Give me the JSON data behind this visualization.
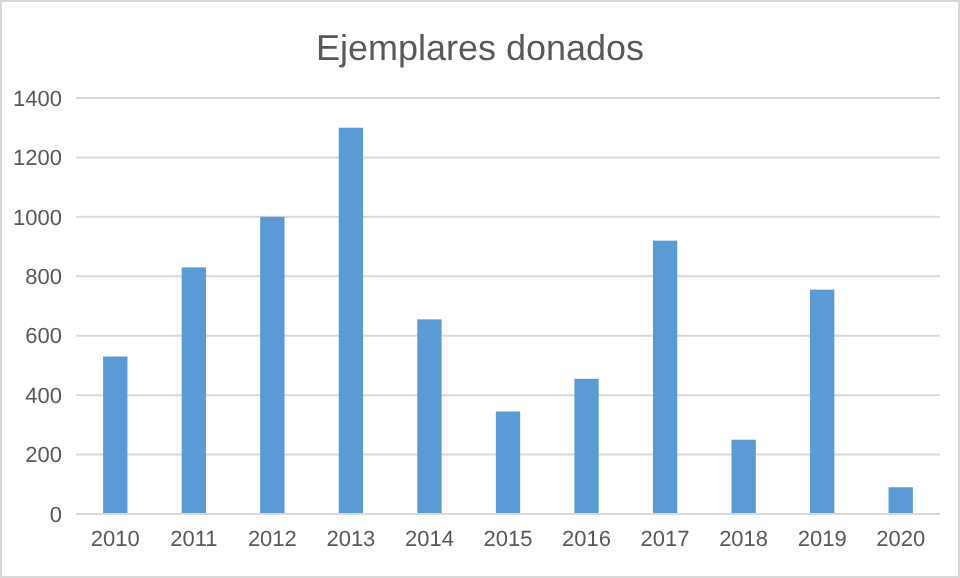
{
  "chart_data": {
    "type": "bar",
    "title": "Ejemplares donados",
    "categories": [
      "2010",
      "2011",
      "2012",
      "2013",
      "2014",
      "2015",
      "2016",
      "2017",
      "2018",
      "2019",
      "2020"
    ],
    "values": [
      530,
      830,
      1000,
      1300,
      655,
      345,
      455,
      920,
      250,
      755,
      90
    ],
    "color": "#5b9bd5",
    "ylim": [
      0,
      1400
    ],
    "yticks": [
      0,
      200,
      400,
      600,
      800,
      1000,
      1200,
      1400
    ],
    "grid": "y"
  }
}
